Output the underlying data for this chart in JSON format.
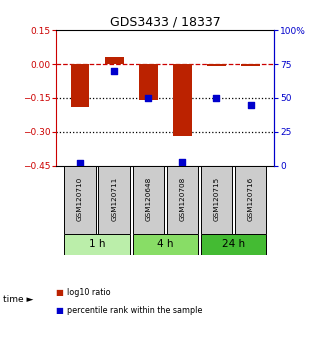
{
  "title": "GDS3433 / 18337",
  "samples": [
    "GSM120710",
    "GSM120711",
    "GSM120648",
    "GSM120708",
    "GSM120715",
    "GSM120716"
  ],
  "log10_ratio": [
    -0.19,
    0.03,
    -0.16,
    -0.32,
    -0.01,
    -0.01
  ],
  "percentile_rank": [
    2,
    70,
    50,
    3,
    50,
    45
  ],
  "ylim_left": [
    -0.45,
    0.15
  ],
  "ylim_right": [
    0,
    100
  ],
  "yticks_left": [
    0.15,
    0,
    -0.15,
    -0.3,
    -0.45
  ],
  "yticks_right": [
    100,
    75,
    50,
    25,
    0
  ],
  "bar_color": "#bb2200",
  "dot_color": "#0000cc",
  "dashed_line_color": "#cc0000",
  "dotted_line_color": "#000000",
  "time_groups": [
    {
      "label": "1 h",
      "samples": [
        0,
        1
      ],
      "color": "#bbeeaa"
    },
    {
      "label": "4 h",
      "samples": [
        2,
        3
      ],
      "color": "#88dd66"
    },
    {
      "label": "24 h",
      "samples": [
        4,
        5
      ],
      "color": "#44bb33"
    }
  ],
  "legend_items": [
    {
      "label": "log10 ratio",
      "color": "#bb2200"
    },
    {
      "label": "percentile rank within the sample",
      "color": "#0000cc"
    }
  ],
  "bg_color": "#ffffff",
  "sample_box_color": "#cccccc",
  "sample_box_edge": "#000000",
  "bar_width": 0.55,
  "left_ylabel_color": "#cc0000",
  "right_ylabel_color": "#0000cc"
}
